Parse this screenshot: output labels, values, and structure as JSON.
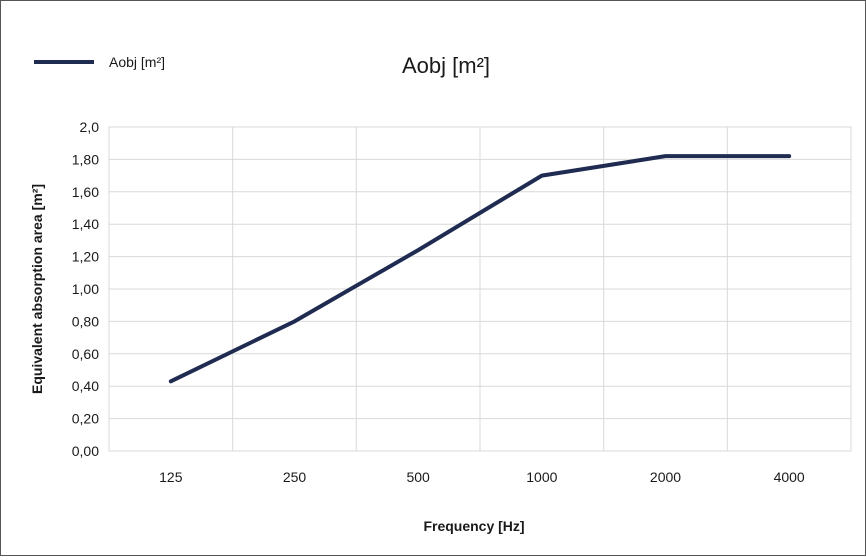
{
  "chart_data": {
    "type": "line",
    "title": "Aobj [m²]",
    "xlabel": "Frequency [Hz]",
    "ylabel": "Equivalent absorption area  [m²]",
    "categories": [
      "125",
      "250",
      "500",
      "1000",
      "2000",
      "4000"
    ],
    "series": [
      {
        "name": "Aobj [m²]",
        "values": [
          0.43,
          0.8,
          1.24,
          1.7,
          1.82,
          1.82
        ],
        "color": "#1f2b50"
      }
    ],
    "y_ticks": [
      "0,00",
      "0,20",
      "0,40",
      "0,60",
      "0,80",
      "1,00",
      "1,20",
      "1,40",
      "1,60",
      "1,80",
      "2,0"
    ],
    "ylim": [
      0,
      2.0
    ],
    "grid": true,
    "legend_position": "top-left"
  },
  "colors": {
    "line": "#1f2b50",
    "grid": "#d9d9d9",
    "border": "#555555"
  }
}
